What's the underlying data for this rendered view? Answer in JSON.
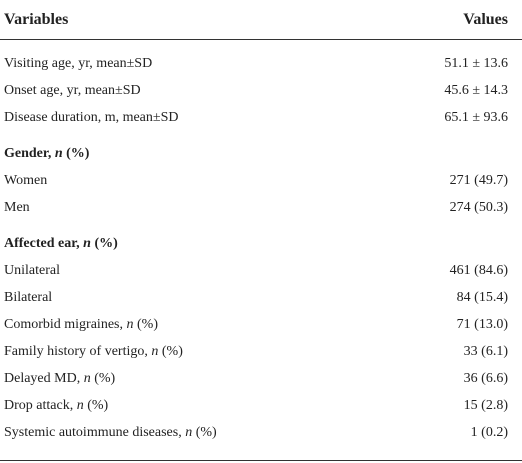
{
  "table": {
    "header": [
      "Variables",
      "Values"
    ],
    "rows": [
      {
        "variable": [
          {
            "text": "Visiting age, yr, mean±SD"
          }
        ],
        "value": "51.1 ± 13.6"
      },
      {
        "variable": [
          {
            "text": "Onset age, yr, mean±SD"
          }
        ],
        "value": "45.6 ± 14.3"
      },
      {
        "variable": [
          {
            "text": "Disease duration, m, mean±SD"
          }
        ],
        "value": "65.1 ± 93.6"
      },
      {
        "variable": [
          {
            "text": "Gender, "
          },
          {
            "text": "n",
            "italic": true
          },
          {
            "text": " (%)"
          }
        ],
        "bold": true
      },
      {
        "variable": [
          {
            "text": "Women"
          }
        ],
        "value": "271 (49.7)"
      },
      {
        "variable": [
          {
            "text": "Men"
          }
        ],
        "value": "274 (50.3)"
      },
      {
        "variable": [
          {
            "text": "Affected ear, "
          },
          {
            "text": "n",
            "italic": true
          },
          {
            "text": " (%)"
          }
        ],
        "bold": true
      },
      {
        "variable": [
          {
            "text": "Unilateral"
          }
        ],
        "value": "461 (84.6)"
      },
      {
        "variable": [
          {
            "text": "Bilateral"
          }
        ],
        "value": "84 (15.4)"
      },
      {
        "variable": [
          {
            "text": "Comorbid migraines, "
          },
          {
            "text": "n",
            "italic": true
          },
          {
            "text": " (%)"
          }
        ],
        "value": "71 (13.0)"
      },
      {
        "variable": [
          {
            "text": "Family history of vertigo, "
          },
          {
            "text": "n",
            "italic": true
          },
          {
            "text": " (%)"
          }
        ],
        "value": "33 (6.1)"
      },
      {
        "variable": [
          {
            "text": "Delayed MD, "
          },
          {
            "text": "n",
            "italic": true
          },
          {
            "text": " (%)"
          }
        ],
        "value": "36 (6.6)"
      },
      {
        "variable": [
          {
            "text": "Drop attack, "
          },
          {
            "text": "n",
            "italic": true
          },
          {
            "text": " (%)"
          }
        ],
        "value": "15 (2.8)"
      },
      {
        "variable": [
          {
            "text": "Systemic autoimmune diseases, "
          },
          {
            "text": "n",
            "italic": true
          },
          {
            "text": " (%)"
          }
        ],
        "value": "1 (0.2)"
      }
    ]
  }
}
